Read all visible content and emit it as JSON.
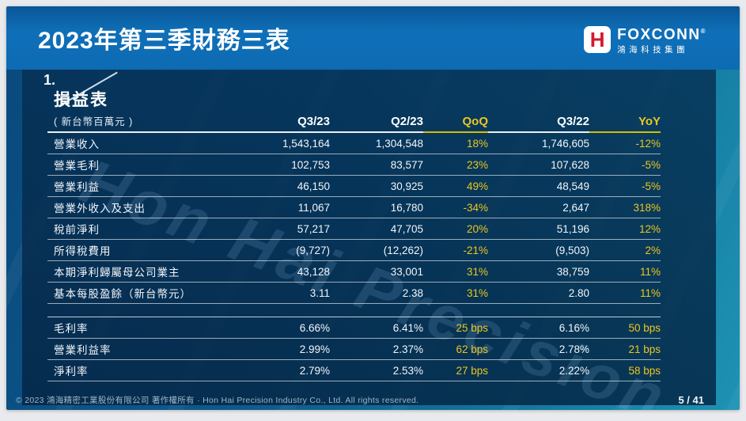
{
  "header": {
    "title": "2023年第三季財務三表",
    "logo": {
      "mark": "H",
      "brand": "FOXCONN",
      "reg": "®",
      "sub": "鴻海科技集團"
    }
  },
  "section": {
    "index": "1.",
    "table_title": "損益表",
    "unit_note": "( 新台幣百萬元 )"
  },
  "watermark": "Hon Hai Precision",
  "table": {
    "columns": [
      "Q3/23",
      "Q2/23",
      "QoQ",
      "Q3/22",
      "YoY"
    ],
    "rows": [
      {
        "label": "營業收入",
        "q323": "1,543,164",
        "q223": "1,304,548",
        "qoq": "18%",
        "q322": "1,746,605",
        "yoy": "-12%"
      },
      {
        "label": "營業毛利",
        "q323": "102,753",
        "q223": "83,577",
        "qoq": "23%",
        "q322": "107,628",
        "yoy": "-5%"
      },
      {
        "label": "營業利益",
        "q323": "46,150",
        "q223": "30,925",
        "qoq": "49%",
        "q322": "48,549",
        "yoy": "-5%"
      },
      {
        "label": "營業外收入及支出",
        "q323": "11,067",
        "q223": "16,780",
        "qoq": "-34%",
        "q322": "2,647",
        "yoy": "318%"
      },
      {
        "label": "稅前淨利",
        "q323": "57,217",
        "q223": "47,705",
        "qoq": "20%",
        "q322": "51,196",
        "yoy": "12%"
      },
      {
        "label": "所得稅費用",
        "q323": "(9,727)",
        "q223": "(12,262)",
        "qoq": "-21%",
        "q322": "(9,503)",
        "yoy": "2%"
      },
      {
        "label": "本期淨利歸屬母公司業主",
        "q323": "43,128",
        "q223": "33,001",
        "qoq": "31%",
        "q322": "38,759",
        "yoy": "11%"
      },
      {
        "label": "基本每股盈餘（新台幣元）",
        "q323": "3.11",
        "q223": "2.38",
        "qoq": "31%",
        "q322": "2.80",
        "yoy": "11%"
      }
    ],
    "ratio_rows": [
      {
        "label": "毛利率",
        "q323": "6.66%",
        "q223": "6.41%",
        "qoq": "25 bps",
        "q322": "6.16%",
        "yoy": "50 bps"
      },
      {
        "label": "營業利益率",
        "q323": "2.99%",
        "q223": "2.37%",
        "qoq": "62 bps",
        "q322": "2.78%",
        "yoy": "21 bps"
      },
      {
        "label": "淨利率",
        "q323": "2.79%",
        "q223": "2.53%",
        "qoq": "27 bps",
        "q322": "2.22%",
        "yoy": "58 bps"
      }
    ]
  },
  "footer": {
    "copyright": "© 2023 鴻海精密工業股份有限公司 著作權所有 · Hon Hai Precision Industry Co., Ltd. All rights reserved.",
    "page": "5 / 41"
  },
  "colors": {
    "accent_yellow": "#ecc61f",
    "header_blue": "#0e6fb8",
    "panel_navy": "#06304f"
  }
}
